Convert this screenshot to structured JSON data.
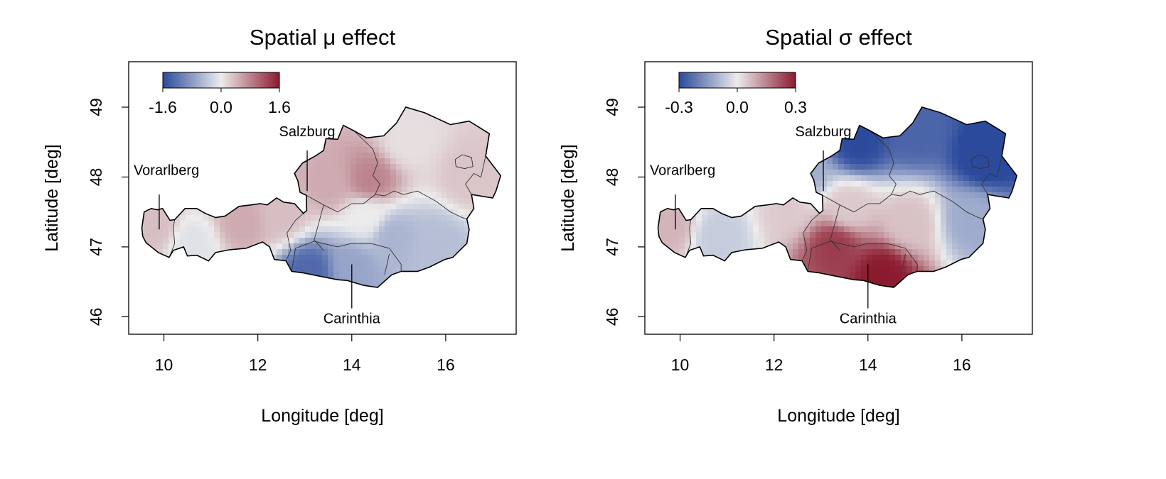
{
  "chart_data": [
    {
      "type": "heatmap",
      "title": "Spatial μ effect",
      "xlabel": "Longitude [deg]",
      "ylabel": "Latitude [deg]",
      "xlim": [
        9.25,
        17.5
      ],
      "ylim": [
        45.75,
        49.65
      ],
      "xticks": [
        10,
        12,
        14,
        16
      ],
      "yticks": [
        46,
        47,
        48,
        49
      ],
      "colorbar": {
        "min": -1.6,
        "max": 1.6,
        "ticks": [
          "-1.6",
          "0.0",
          "1.6"
        ],
        "low_color": "#2b4a9c",
        "mid_color": "#ececec",
        "high_color": "#8b1a2e",
        "placement": "top-left"
      },
      "annotations": [
        {
          "label": "Vorarlberg",
          "lon": 9.9,
          "lat": 47.25
        },
        {
          "label": "Salzburg",
          "lon": 13.05,
          "lat": 47.8
        },
        {
          "label": "Carinthia",
          "lon": 14.0,
          "lat": 46.75
        }
      ],
      "field_anchors": [
        {
          "lon": 9.8,
          "lat": 47.3,
          "value": 0.35
        },
        {
          "lon": 10.6,
          "lat": 47.05,
          "value": -0.1
        },
        {
          "lon": 11.7,
          "lat": 47.35,
          "value": 0.5
        },
        {
          "lon": 12.5,
          "lat": 47.45,
          "value": 0.35
        },
        {
          "lon": 13.5,
          "lat": 47.9,
          "value": 0.5
        },
        {
          "lon": 14.4,
          "lat": 47.95,
          "value": 0.8
        },
        {
          "lon": 15.2,
          "lat": 48.5,
          "value": 0.1
        },
        {
          "lon": 16.5,
          "lat": 48.0,
          "value": 0.3
        },
        {
          "lon": 13.1,
          "lat": 46.65,
          "value": -1.3
        },
        {
          "lon": 14.0,
          "lat": 46.7,
          "value": -0.7
        },
        {
          "lon": 14.9,
          "lat": 47.15,
          "value": -0.55
        },
        {
          "lon": 15.8,
          "lat": 47.05,
          "value": -0.45
        },
        {
          "lon": 14.3,
          "lat": 47.45,
          "value": 0.0
        }
      ]
    },
    {
      "type": "heatmap",
      "title": "Spatial σ effect",
      "xlabel": "Longitude [deg]",
      "ylabel": "Latitude [deg]",
      "xlim": [
        9.25,
        17.5
      ],
      "ylim": [
        45.75,
        49.65
      ],
      "xticks": [
        10,
        12,
        14,
        16
      ],
      "yticks": [
        46,
        47,
        48,
        49
      ],
      "colorbar": {
        "min": -0.3,
        "max": 0.3,
        "ticks": [
          "-0.3",
          "0.0",
          "0.3"
        ],
        "low_color": "#2b4a9c",
        "mid_color": "#ececec",
        "high_color": "#8b1a2e",
        "placement": "top-left"
      },
      "annotations": [
        {
          "label": "Vorarlberg",
          "lon": 9.9,
          "lat": 47.25
        },
        {
          "label": "Salzburg",
          "lon": 13.05,
          "lat": 47.8
        },
        {
          "label": "Carinthia",
          "lon": 14.0,
          "lat": 46.75
        }
      ],
      "field_anchors": [
        {
          "lon": 9.8,
          "lat": 47.3,
          "value": 0.08
        },
        {
          "lon": 10.8,
          "lat": 47.15,
          "value": -0.06
        },
        {
          "lon": 12.6,
          "lat": 48.05,
          "value": -0.12
        },
        {
          "lon": 13.8,
          "lat": 48.5,
          "value": -0.3
        },
        {
          "lon": 15.0,
          "lat": 48.65,
          "value": -0.25
        },
        {
          "lon": 16.5,
          "lat": 48.3,
          "value": -0.32
        },
        {
          "lon": 16.2,
          "lat": 47.4,
          "value": -0.12
        },
        {
          "lon": 12.3,
          "lat": 47.55,
          "value": 0.05
        },
        {
          "lon": 13.3,
          "lat": 47.0,
          "value": 0.25
        },
        {
          "lon": 14.3,
          "lat": 46.6,
          "value": 0.3
        },
        {
          "lon": 14.9,
          "lat": 47.35,
          "value": 0.06
        },
        {
          "lon": 13.6,
          "lat": 47.55,
          "value": 0.05
        }
      ]
    }
  ]
}
